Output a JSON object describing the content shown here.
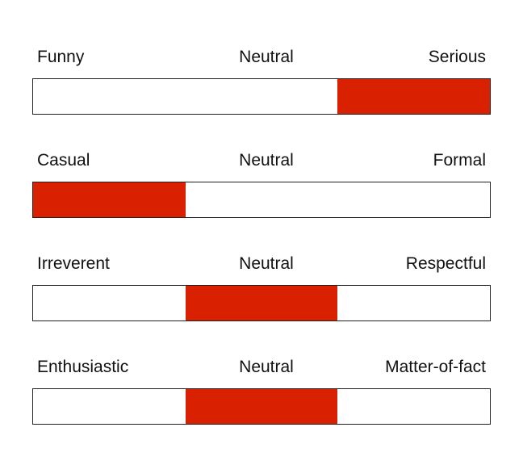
{
  "colors": {
    "fill": "#d92000",
    "border": "#222222",
    "background": "#ffffff"
  },
  "scales": [
    {
      "left_label": "Funny",
      "mid_label": "Neutral",
      "right_label": "Serious",
      "selected_segment": 3,
      "segments": 3
    },
    {
      "left_label": "Casual",
      "mid_label": "Neutral",
      "right_label": "Formal",
      "selected_segment": 1,
      "segments": 3
    },
    {
      "left_label": "Irreverent",
      "mid_label": "Neutral",
      "right_label": "Respectful",
      "selected_segment": 2,
      "segments": 3
    },
    {
      "left_label": "Enthusiastic",
      "mid_label": "Neutral",
      "right_label": "Matter-of-fact",
      "selected_segment": 2,
      "segments": 3
    }
  ]
}
